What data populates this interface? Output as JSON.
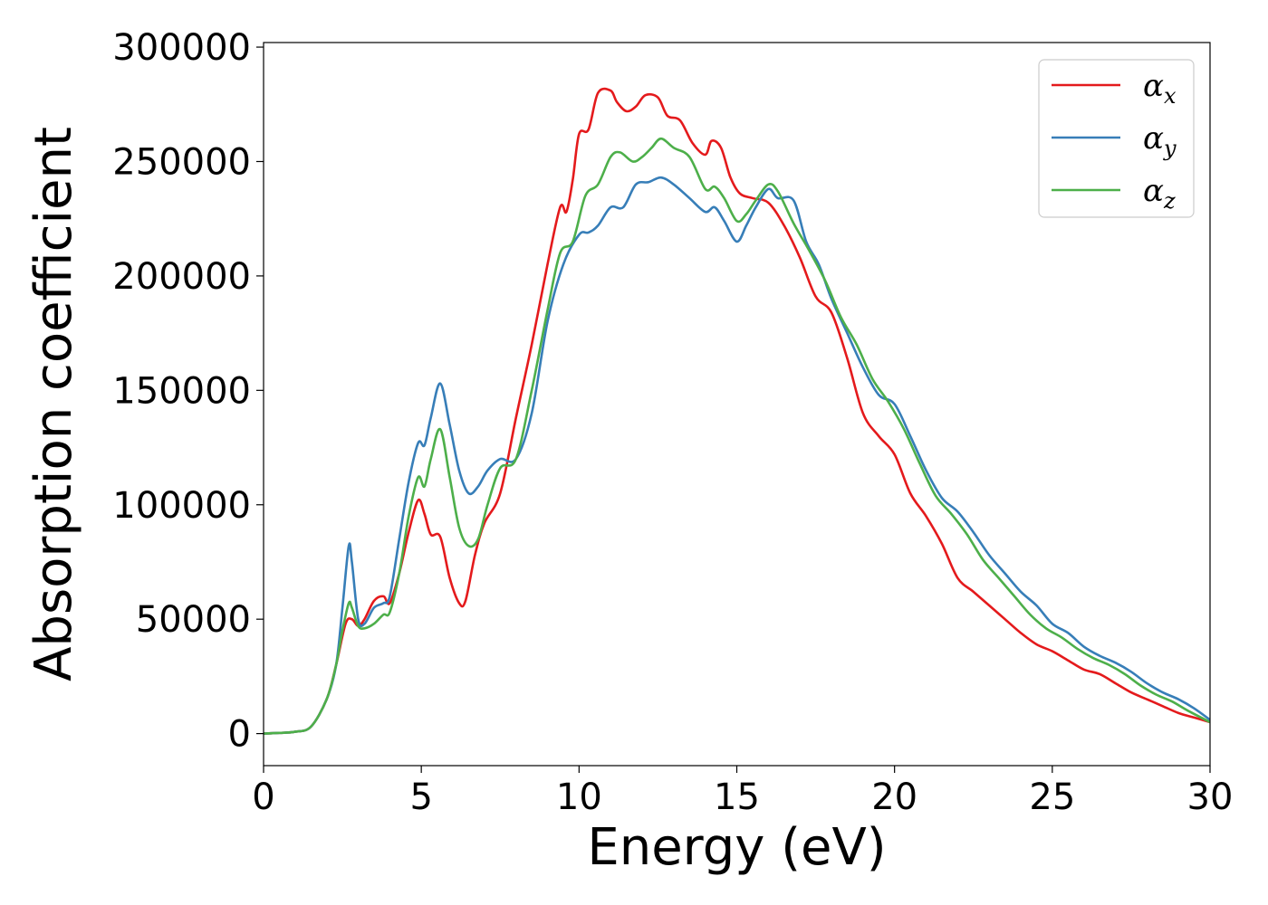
{
  "chart_data": {
    "type": "line",
    "xlabel": "Energy (eV)",
    "ylabel": "Absorption coefficient",
    "xlim": [
      0,
      30
    ],
    "ylim": [
      -14000,
      302000
    ],
    "xticks": [
      0,
      5,
      10,
      15,
      20,
      25,
      30
    ],
    "xtick_labels": [
      "0",
      "5",
      "10",
      "15",
      "20",
      "25",
      "30"
    ],
    "yticks": [
      0,
      50000,
      100000,
      150000,
      200000,
      250000,
      300000
    ],
    "ytick_labels": [
      "0",
      "50000",
      "100000",
      "150000",
      "200000",
      "250000",
      "300000"
    ],
    "grid": false,
    "legend_position": "top-right",
    "series": [
      {
        "name": "α_x",
        "legend_base": "α",
        "legend_sub": "x",
        "color": "#e41a1c",
        "x": [
          0,
          0.5,
          1,
          1.5,
          2,
          2.3,
          2.6,
          2.8,
          3.0,
          3.2,
          3.5,
          3.8,
          4.0,
          4.3,
          4.6,
          4.9,
          5.1,
          5.3,
          5.6,
          5.9,
          6.2,
          6.4,
          6.7,
          7.0,
          7.5,
          8.0,
          8.5,
          9.0,
          9.4,
          9.6,
          9.8,
          10.0,
          10.3,
          10.6,
          11.0,
          11.2,
          11.5,
          11.8,
          12.1,
          12.5,
          12.8,
          13.2,
          13.6,
          14.0,
          14.2,
          14.5,
          14.8,
          15.1,
          15.5,
          16.0,
          16.5,
          17.0,
          17.5,
          18.0,
          18.5,
          19.0,
          19.5,
          20.0,
          20.5,
          21.0,
          21.5,
          22.0,
          22.5,
          23.0,
          23.5,
          24.0,
          24.5,
          25.0,
          25.5,
          26.0,
          26.5,
          27.0,
          27.5,
          28.0,
          28.5,
          29.0,
          29.5,
          30.0
        ],
        "y": [
          0,
          300,
          800,
          3000,
          15000,
          30000,
          48000,
          50000,
          47000,
          50000,
          58000,
          60000,
          57000,
          70000,
          88000,
          102000,
          96000,
          87000,
          86000,
          68000,
          57000,
          58000,
          78000,
          92000,
          105000,
          138000,
          170000,
          205000,
          230000,
          228000,
          242000,
          262000,
          264000,
          280000,
          281000,
          276000,
          272000,
          274000,
          279000,
          278000,
          270000,
          268000,
          258000,
          253000,
          259000,
          256000,
          243000,
          236000,
          234000,
          232000,
          222000,
          208000,
          191000,
          184000,
          164000,
          140000,
          130000,
          122000,
          105000,
          95000,
          83000,
          68000,
          62000,
          56000,
          50000,
          44000,
          39000,
          36000,
          32000,
          28000,
          26000,
          22000,
          18000,
          15000,
          12000,
          9000,
          7000,
          5000
        ]
      },
      {
        "name": "α_y",
        "legend_base": "α",
        "legend_sub": "y",
        "color": "#377eb8",
        "x": [
          0,
          0.5,
          1,
          1.5,
          2,
          2.3,
          2.5,
          2.7,
          2.8,
          3.0,
          3.2,
          3.5,
          3.8,
          4.0,
          4.3,
          4.6,
          4.9,
          5.1,
          5.3,
          5.6,
          5.9,
          6.2,
          6.5,
          6.8,
          7.1,
          7.5,
          8.0,
          8.5,
          9.0,
          9.5,
          10.0,
          10.3,
          10.6,
          11.0,
          11.4,
          11.8,
          12.2,
          12.6,
          13.0,
          13.5,
          14.0,
          14.3,
          14.6,
          15.0,
          15.3,
          15.6,
          16.0,
          16.3,
          16.8,
          17.2,
          17.6,
          18.0,
          18.5,
          19.0,
          19.5,
          20.0,
          20.5,
          21.0,
          21.5,
          22.0,
          22.5,
          23.0,
          23.5,
          24.0,
          24.5,
          25.0,
          25.5,
          26.0,
          26.5,
          27.0,
          27.5,
          28.0,
          28.5,
          29.0,
          29.5,
          30.0
        ],
        "y": [
          0,
          300,
          800,
          3000,
          15000,
          30000,
          55000,
          82000,
          75000,
          50000,
          48000,
          55000,
          57000,
          60000,
          85000,
          110000,
          127000,
          126000,
          138000,
          153000,
          135000,
          115000,
          105000,
          108000,
          115000,
          120000,
          120000,
          140000,
          180000,
          205000,
          218000,
          219000,
          222000,
          230000,
          230000,
          240000,
          241000,
          243000,
          240000,
          234000,
          228000,
          230000,
          224000,
          215000,
          222000,
          230000,
          238000,
          234000,
          233000,
          215000,
          205000,
          190000,
          175000,
          160000,
          148000,
          144000,
          130000,
          115000,
          103000,
          97000,
          88000,
          78000,
          70000,
          62000,
          56000,
          48000,
          44000,
          38000,
          34000,
          31000,
          27000,
          22000,
          18000,
          15000,
          11000,
          6000
        ]
      },
      {
        "name": "α_z",
        "legend_base": "α",
        "legend_sub": "z",
        "color": "#4daf4a",
        "x": [
          0,
          0.5,
          1,
          1.5,
          2,
          2.3,
          2.5,
          2.7,
          2.8,
          3.0,
          3.2,
          3.5,
          3.8,
          4.0,
          4.3,
          4.6,
          4.9,
          5.1,
          5.3,
          5.6,
          5.9,
          6.2,
          6.5,
          6.8,
          7.1,
          7.5,
          8.0,
          8.5,
          9.0,
          9.4,
          9.8,
          10.2,
          10.6,
          11.0,
          11.3,
          11.7,
          12.0,
          12.3,
          12.6,
          13.0,
          13.5,
          14.0,
          14.3,
          14.6,
          15.0,
          15.3,
          15.6,
          16.0,
          16.3,
          16.8,
          17.3,
          17.8,
          18.3,
          18.8,
          19.3,
          19.8,
          20.3,
          20.8,
          21.3,
          21.8,
          22.3,
          22.8,
          23.3,
          23.8,
          24.3,
          24.8,
          25.3,
          25.8,
          26.3,
          26.8,
          27.3,
          27.8,
          28.3,
          28.8,
          29.3,
          30.0
        ],
        "y": [
          0,
          300,
          800,
          3000,
          15000,
          30000,
          45000,
          57000,
          55000,
          47000,
          46000,
          48000,
          52000,
          53000,
          70000,
          95000,
          112000,
          108000,
          120000,
          133000,
          112000,
          90000,
          82000,
          85000,
          100000,
          116000,
          120000,
          150000,
          185000,
          210000,
          215000,
          235000,
          240000,
          252000,
          254000,
          250000,
          252000,
          256000,
          260000,
          256000,
          252000,
          238000,
          239000,
          234000,
          224000,
          227000,
          233000,
          240000,
          237000,
          223000,
          211000,
          198000,
          182000,
          170000,
          155000,
          145000,
          133000,
          118000,
          104000,
          96000,
          87000,
          76000,
          68000,
          60000,
          52000,
          46000,
          42000,
          37000,
          33000,
          30000,
          26000,
          21000,
          17000,
          14000,
          10000,
          5000
        ]
      }
    ]
  }
}
